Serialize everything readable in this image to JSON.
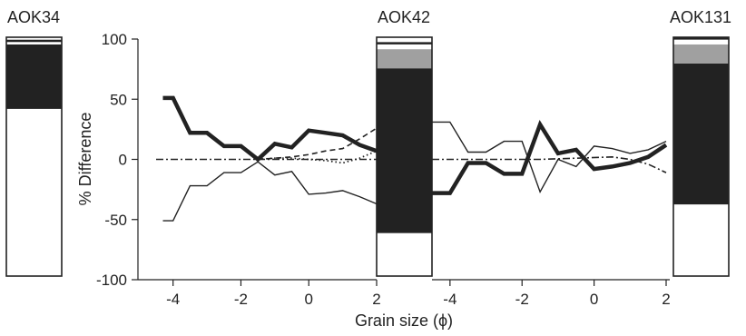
{
  "chart_data": {
    "type": "line",
    "ylabel": "% Difference",
    "xlabel": "Grain size (ϕ)",
    "ylim": [
      -100,
      100
    ],
    "yticks": [
      -100,
      -50,
      0,
      50,
      100
    ],
    "xticks": [
      -4,
      -2,
      0,
      2
    ],
    "grid": false,
    "legend": "none",
    "panels": [
      {
        "xlim": [
          -4.5,
          2
        ],
        "series": [
          {
            "style": "thick",
            "x": [
              -4.3,
              -4.0,
              -3.5,
              -3.0,
              -2.5,
              -2.0,
              -1.5,
              -1.0,
              -0.5,
              0.0,
              0.5,
              1.0,
              1.5,
              2.0
            ],
            "y": [
              51,
              51,
              22,
              22,
              11,
              11,
              0,
              13,
              10,
              24,
              22,
              20,
              12,
              7
            ]
          },
          {
            "style": "thin",
            "x": [
              -4.3,
              -4.0,
              -3.5,
              -3.0,
              -2.5,
              -2.0,
              -1.5,
              -1.0,
              -0.5,
              0.0,
              0.5,
              1.0,
              1.5,
              2.0
            ],
            "y": [
              -51,
              -51,
              -22,
              -22,
              -11,
              -11,
              -2,
              -13,
              -10,
              -29,
              -28,
              -26,
              -31,
              -37
            ]
          },
          {
            "style": "dashed",
            "x": [
              -1.5,
              -1.0,
              -0.5,
              0.0,
              0.5,
              1.0,
              1.5,
              2.0
            ],
            "y": [
              0,
              1,
              2,
              4,
              7,
              9,
              17,
              26
            ]
          },
          {
            "style": "dotted",
            "x": [
              -1.5,
              -1.0,
              -0.5,
              0.0,
              0.5,
              1.0,
              1.5,
              2.0
            ],
            "y": [
              0,
              1,
              1,
              0,
              -1,
              -3,
              1,
              7
            ]
          },
          {
            "style": "dashdot",
            "x": [
              -4.5,
              -3.0,
              -1.5,
              0.0,
              1.0,
              2.0
            ],
            "y": [
              0,
              0,
              0,
              0,
              0,
              0
            ]
          }
        ]
      },
      {
        "xlim": [
          -4.5,
          2
        ],
        "series": [
          {
            "style": "thick",
            "x": [
              -4.5,
              -4.0,
              -3.5,
              -3.0,
              -2.5,
              -2.0,
              -1.5,
              -1.0,
              -0.5,
              0.0,
              0.5,
              1.0,
              1.5,
              2.0
            ],
            "y": [
              -28,
              -28,
              -3,
              -3,
              -12,
              -12,
              29,
              5,
              8,
              -8,
              -6,
              -3,
              2,
              12
            ]
          },
          {
            "style": "thin",
            "x": [
              -4.5,
              -4.0,
              -3.5,
              -3.0,
              -2.5,
              -2.0,
              -1.5,
              -1.0,
              -0.5,
              0.0,
              0.5,
              1.0,
              1.5,
              2.0
            ],
            "y": [
              31,
              31,
              6,
              6,
              15,
              15,
              -27,
              0,
              -6,
              11,
              9,
              5,
              8,
              15
            ]
          },
          {
            "style": "dashdot",
            "x": [
              -4.5,
              -3.0,
              -1.5,
              -0.5,
              0.5,
              1.0,
              1.5,
              2.0
            ],
            "y": [
              0,
              0,
              0,
              1,
              2,
              0,
              -4,
              -11
            ]
          }
        ]
      }
    ],
    "stacked_bars": [
      {
        "name": "AOK34",
        "segments": [
          {
            "fill": "white",
            "value": 70
          },
          {
            "fill": "black",
            "value": 27
          },
          {
            "fill": "white",
            "value": 1
          },
          {
            "fill": "black",
            "value": 1
          },
          {
            "fill": "white",
            "value": 1
          }
        ]
      },
      {
        "name": "AOK42",
        "segments": [
          {
            "fill": "white",
            "value": 18
          },
          {
            "fill": "black",
            "value": 69
          },
          {
            "fill": "gray",
            "value": 8
          },
          {
            "fill": "white",
            "value": 2
          },
          {
            "fill": "black",
            "value": 1
          },
          {
            "fill": "white",
            "value": 2
          }
        ]
      },
      {
        "name": "AOK131",
        "segments": [
          {
            "fill": "white",
            "value": 30
          },
          {
            "fill": "black",
            "value": 59
          },
          {
            "fill": "gray",
            "value": 8
          },
          {
            "fill": "white",
            "value": 2
          },
          {
            "fill": "black",
            "value": 1
          }
        ]
      }
    ],
    "colors": {
      "black": "#222222",
      "gray": "#a0a0a0",
      "white": "#ffffff",
      "stroke": "#222222"
    }
  }
}
